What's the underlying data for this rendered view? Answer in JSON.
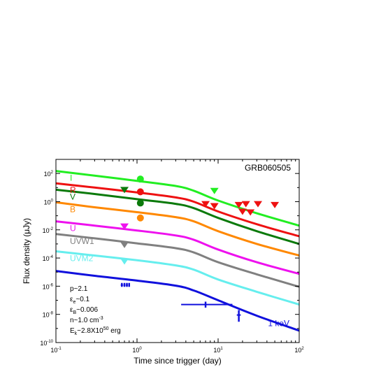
{
  "chart_data": {
    "type": "line",
    "title": "GRB060505",
    "xlabel": "Time since trigger (day)",
    "ylabel": "Flux density (μJy)",
    "x_scale": "log",
    "y_scale": "log",
    "xlim": [
      0.1,
      100
    ],
    "ylim": [
      1e-10,
      1000
    ],
    "x_ticks": [
      {
        "base": "10",
        "exp": "-1"
      },
      {
        "base": "10",
        "exp": "0"
      },
      {
        "base": "10",
        "exp": "1"
      },
      {
        "base": "10",
        "exp": "2"
      }
    ],
    "y_ticks": [
      {
        "base": "10",
        "exp": "-10"
      },
      {
        "base": "10",
        "exp": "-8"
      },
      {
        "base": "10",
        "exp": "-6"
      },
      {
        "base": "10",
        "exp": "-4"
      },
      {
        "base": "10",
        "exp": "-2"
      },
      {
        "base": "10",
        "exp": "0"
      },
      {
        "base": "10",
        "exp": "2"
      }
    ],
    "params": [
      {
        "main": "p~2.1",
        "sub": "",
        "rest": "",
        "sup": "",
        "tail": ""
      },
      {
        "main": "ε",
        "sub": "e",
        "rest": "~0.1",
        "sup": "",
        "tail": ""
      },
      {
        "main": "ε",
        "sub": "B",
        "rest": "~0.006",
        "sup": "",
        "tail": ""
      },
      {
        "main": "n~1.0 cm",
        "sub": "",
        "rest": "",
        "sup": "-3",
        "tail": ""
      },
      {
        "main": "E",
        "sub": "k",
        "rest": "~2.8X10",
        "sup": "50",
        "tail": " erg"
      }
    ],
    "series": [
      {
        "name": "I",
        "color": "#22ee22",
        "x": [
          0.1,
          0.3,
          1,
          3,
          5,
          10,
          30,
          100
        ],
        "y": [
          150,
          70,
          30,
          13,
          6,
          1.2,
          0.15,
          0.02
        ]
      },
      {
        "name": "R",
        "color": "#ee1111",
        "x": [
          0.1,
          0.3,
          1,
          3,
          5,
          10,
          30,
          100
        ],
        "y": [
          20,
          10,
          4.5,
          2,
          1,
          0.2,
          0.025,
          0.0035
        ]
      },
      {
        "name": "V",
        "color": "#0b7a0b",
        "x": [
          0.1,
          0.3,
          1,
          3,
          5,
          10,
          30,
          100
        ],
        "y": [
          7,
          3.5,
          1.5,
          0.7,
          0.35,
          0.07,
          0.008,
          0.001
        ]
      },
      {
        "name": "B",
        "color": "#ff8800",
        "x": [
          0.1,
          0.3,
          1,
          3,
          5,
          10,
          30,
          100
        ],
        "y": [
          0.9,
          0.4,
          0.18,
          0.08,
          0.04,
          0.008,
          0.001,
          0.00015
        ]
      },
      {
        "name": "U",
        "color": "#ee11ee",
        "x": [
          0.1,
          0.3,
          1,
          3,
          5,
          10,
          30,
          100
        ],
        "y": [
          0.04,
          0.02,
          0.009,
          0.004,
          0.002,
          0.0004,
          5e-05,
          7.5e-06
        ]
      },
      {
        "name": "UVW1",
        "color": "#808080",
        "x": [
          0.1,
          0.3,
          1,
          3,
          5,
          10,
          30,
          100
        ],
        "y": [
          0.005,
          0.0025,
          0.0011,
          0.0005,
          0.00025,
          5e-05,
          7e-06,
          9e-07
        ]
      },
      {
        "name": "UVM2",
        "color": "#66eeee",
        "x": [
          0.1,
          0.3,
          1,
          3,
          5,
          10,
          30,
          100
        ],
        "y": [
          0.0003,
          0.00015,
          7e-05,
          3e-05,
          1.5e-05,
          3e-06,
          4e-07,
          5e-08
        ]
      },
      {
        "name": "1 keV",
        "color": "#1010dd",
        "x": [
          0.1,
          0.3,
          1,
          3,
          5,
          10,
          30,
          100
        ],
        "y": [
          1.2e-05,
          5.5e-06,
          2.5e-06,
          1.1e-06,
          5e-07,
          1e-07,
          8e-09,
          7e-10
        ]
      }
    ],
    "detections": [
      {
        "series": "I",
        "x": 1.1,
        "y": 40
      },
      {
        "series": "R",
        "x": 1.1,
        "y": 5
      },
      {
        "series": "V",
        "x": 1.1,
        "y": 0.8
      },
      {
        "series": "B",
        "x": 1.1,
        "y": 0.07
      }
    ],
    "upper_limits": [
      {
        "series": "V",
        "x": 0.7,
        "y": 7
      },
      {
        "series": "U",
        "x": 0.7,
        "y": 0.018
      },
      {
        "series": "UVW1",
        "x": 0.7,
        "y": 0.0009
      },
      {
        "series": "UVM2",
        "x": 0.7,
        "y": 6e-05
      },
      {
        "series": "I",
        "x": 9,
        "y": 6
      },
      {
        "series": "R",
        "x": 7,
        "y": 0.7
      },
      {
        "series": "R",
        "x": 9,
        "y": 0.5
      },
      {
        "series": "R",
        "x": 18,
        "y": 0.6
      },
      {
        "series": "R",
        "x": 22,
        "y": 0.7
      },
      {
        "series": "R",
        "x": 31,
        "y": 0.7
      },
      {
        "series": "R",
        "x": 50,
        "y": 0.6
      },
      {
        "series": "R",
        "x": 20,
        "y": 0.2
      },
      {
        "series": "R",
        "x": 25,
        "y": 0.18
      }
    ],
    "xray_points": [
      {
        "x": 7,
        "y": 5e-08,
        "xlo": 3.5,
        "xhi": 15,
        "ylo": 3e-08,
        "yhi": 8e-08
      },
      {
        "x": 18,
        "y": 9e-09,
        "xlo": 17,
        "xhi": 19,
        "ylo": 3e-09,
        "yhi": 2e-08
      },
      {
        "x": 0.65,
        "y": 1.2e-06,
        "xlo": 0.63,
        "xhi": 0.67,
        "ylo": 9e-07,
        "yhi": 1.7e-06
      },
      {
        "x": 0.7,
        "y": 1.2e-06,
        "xlo": 0.68,
        "xhi": 0.72,
        "ylo": 9e-07,
        "yhi": 1.7e-06
      },
      {
        "x": 0.75,
        "y": 1.2e-06,
        "xlo": 0.73,
        "xhi": 0.77,
        "ylo": 9e-07,
        "yhi": 1.7e-06
      },
      {
        "x": 0.8,
        "y": 1.2e-06,
        "xlo": 0.78,
        "xhi": 0.82,
        "ylo": 9e-07,
        "yhi": 1.7e-06
      }
    ],
    "grid": false,
    "legend": "inline labels at left"
  }
}
